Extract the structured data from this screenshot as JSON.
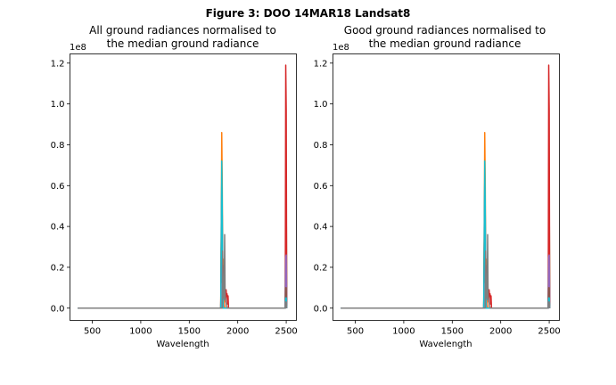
{
  "figure": {
    "suptitle": "Figure 3: DOO 14MAR18  Landsat8"
  },
  "chart_data": [
    {
      "type": "line",
      "title_line1": "All ground radiances normalised to",
      "title_line2": "the median ground radiance",
      "xlabel": "Wavelength",
      "ylabel": "",
      "offset_label": "1e8",
      "xlim": [
        270,
        2605
      ],
      "ylim": [
        -0.06,
        1.245
      ],
      "xticks": [
        500,
        1000,
        1500,
        2000,
        2500
      ],
      "xtick_labels": [
        "500",
        "1000",
        "1500",
        "2000",
        "2500"
      ],
      "yticks": [
        0.0,
        0.2,
        0.4,
        0.6,
        0.8,
        1.0,
        1.2
      ],
      "ytick_labels": [
        "0.0",
        "0.2",
        "0.4",
        "0.6",
        "0.8",
        "1.0",
        "1.2"
      ],
      "grid": false,
      "series": [
        {
          "color": "#1f77b4",
          "x": [
            350,
            1825,
            1830,
            1835,
            1840,
            1845,
            1850,
            1855,
            1870,
            2490,
            2495,
            2500,
            2505
          ],
          "y": [
            0,
            0,
            0.3,
            0.55,
            0.5,
            0.05,
            0,
            0,
            0,
            0,
            0.22,
            0.23,
            0
          ]
        },
        {
          "color": "#ff7f0e",
          "x": [
            350,
            1825,
            1830,
            1835,
            1840,
            1845,
            1850,
            1855,
            1860,
            1870,
            2490,
            2495,
            2500,
            2505
          ],
          "y": [
            0,
            0,
            0.35,
            0.86,
            0.62,
            0.15,
            0.24,
            0.1,
            0.02,
            0,
            0,
            0.03,
            0.02,
            0
          ]
        },
        {
          "color": "#2ca02c",
          "x": [
            350,
            1825,
            1830,
            1835,
            1840,
            1845,
            1850,
            2490,
            2495,
            2500,
            2505
          ],
          "y": [
            0,
            0,
            0.2,
            0.31,
            0.2,
            0.05,
            0,
            0,
            0.6,
            0.6,
            0
          ]
        },
        {
          "color": "#d62728",
          "x": [
            350,
            1830,
            1840,
            1850,
            1860,
            1865,
            1870,
            1875,
            1880,
            1885,
            1890,
            1895,
            1900,
            1905,
            2490,
            2495,
            2500,
            2505
          ],
          "y": [
            0,
            0,
            0.02,
            0.05,
            0.21,
            0.05,
            0.08,
            0.03,
            0.09,
            0.06,
            0.07,
            0.02,
            0.06,
            0,
            0,
            1.19,
            0.97,
            0
          ]
        },
        {
          "color": "#9467bd",
          "x": [
            350,
            1825,
            1830,
            1835,
            1840,
            1845,
            1850,
            2490,
            2495,
            2500,
            2505
          ],
          "y": [
            0,
            0,
            0.15,
            0.5,
            0.37,
            0.1,
            0,
            0,
            0.25,
            0.26,
            0
          ]
        },
        {
          "color": "#8c564b",
          "x": [
            350,
            1825,
            1830,
            1835,
            1840,
            1845,
            1850,
            2490,
            2495,
            2500,
            2505
          ],
          "y": [
            0,
            0,
            0.4,
            0.61,
            0.45,
            0.1,
            0,
            0,
            0.1,
            0.1,
            0
          ]
        },
        {
          "color": "#e377c2",
          "x": [
            350,
            1830,
            1835,
            1840,
            1845,
            1850,
            1855,
            2490,
            2495,
            2500,
            2505
          ],
          "y": [
            0,
            0,
            0.05,
            0.12,
            0.06,
            0.03,
            0,
            0,
            0.02,
            0.02,
            0
          ]
        },
        {
          "color": "#17becf",
          "x": [
            350,
            1825,
            1830,
            1835,
            1840,
            1845,
            1850,
            2490,
            2495,
            2500,
            2505
          ],
          "y": [
            0,
            0,
            0.3,
            0.72,
            0.5,
            0.1,
            0,
            0,
            0.05,
            0.05,
            0
          ]
        },
        {
          "color": "#7f7f7f",
          "x": [
            350,
            1840,
            1845,
            1850,
            1855,
            1860,
            1865,
            1870,
            1875,
            1880,
            1885,
            1890,
            2490,
            2495,
            2500,
            2505
          ],
          "y": [
            0,
            0,
            0.28,
            0.05,
            0.15,
            0.04,
            0.36,
            0.05,
            0.05,
            0.02,
            0.01,
            0,
            0,
            0.03,
            0.03,
            0
          ]
        }
      ]
    },
    {
      "type": "line",
      "title_line1": "Good ground radiances normalised to",
      "title_line2": "the median ground radiance",
      "xlabel": "Wavelength",
      "ylabel": "",
      "offset_label": "1e8",
      "xlim": [
        270,
        2605
      ],
      "ylim": [
        -0.06,
        1.245
      ],
      "xticks": [
        500,
        1000,
        1500,
        2000,
        2500
      ],
      "xtick_labels": [
        "500",
        "1000",
        "1500",
        "2000",
        "2500"
      ],
      "yticks": [
        0.0,
        0.2,
        0.4,
        0.6,
        0.8,
        1.0,
        1.2
      ],
      "ytick_labels": [
        "0.0",
        "0.2",
        "0.4",
        "0.6",
        "0.8",
        "1.0",
        "1.2"
      ],
      "grid": false,
      "series": [
        {
          "color": "#1f77b4",
          "x": [
            350,
            1825,
            1830,
            1835,
            1840,
            1845,
            1850,
            1855,
            1870,
            2490,
            2495,
            2500,
            2505
          ],
          "y": [
            0,
            0,
            0.3,
            0.55,
            0.5,
            0.05,
            0,
            0,
            0,
            0,
            0.22,
            0.23,
            0
          ]
        },
        {
          "color": "#ff7f0e",
          "x": [
            350,
            1825,
            1830,
            1835,
            1840,
            1845,
            1850,
            1855,
            1860,
            1870,
            2490,
            2495,
            2500,
            2505
          ],
          "y": [
            0,
            0,
            0.35,
            0.86,
            0.62,
            0.15,
            0.24,
            0.1,
            0.02,
            0,
            0,
            0.03,
            0.02,
            0
          ]
        },
        {
          "color": "#2ca02c",
          "x": [
            350,
            1825,
            1830,
            1835,
            1840,
            1845,
            1850,
            2490,
            2495,
            2500,
            2505
          ],
          "y": [
            0,
            0,
            0.2,
            0.31,
            0.2,
            0.05,
            0,
            0,
            0.6,
            0.6,
            0
          ]
        },
        {
          "color": "#d62728",
          "x": [
            350,
            1830,
            1840,
            1850,
            1860,
            1865,
            1870,
            1875,
            1880,
            1885,
            1890,
            1895,
            1900,
            1905,
            2490,
            2495,
            2500,
            2505
          ],
          "y": [
            0,
            0,
            0.02,
            0.05,
            0.21,
            0.05,
            0.08,
            0.03,
            0.09,
            0.06,
            0.07,
            0.02,
            0.06,
            0,
            0,
            1.19,
            0.97,
            0
          ]
        },
        {
          "color": "#9467bd",
          "x": [
            350,
            1825,
            1830,
            1835,
            1840,
            1845,
            1850,
            2490,
            2495,
            2500,
            2505
          ],
          "y": [
            0,
            0,
            0.15,
            0.5,
            0.37,
            0.1,
            0,
            0,
            0.25,
            0.26,
            0
          ]
        },
        {
          "color": "#8c564b",
          "x": [
            350,
            1825,
            1830,
            1835,
            1840,
            1845,
            1850,
            2490,
            2495,
            2500,
            2505
          ],
          "y": [
            0,
            0,
            0.4,
            0.61,
            0.45,
            0.1,
            0,
            0,
            0.1,
            0.1,
            0
          ]
        },
        {
          "color": "#e377c2",
          "x": [
            350,
            1830,
            1835,
            1840,
            1845,
            1850,
            1855,
            2490,
            2495,
            2500,
            2505
          ],
          "y": [
            0,
            0,
            0.05,
            0.12,
            0.06,
            0.03,
            0,
            0,
            0.02,
            0.02,
            0
          ]
        },
        {
          "color": "#17becf",
          "x": [
            350,
            1825,
            1830,
            1835,
            1840,
            1845,
            1850,
            2490,
            2495,
            2500,
            2505
          ],
          "y": [
            0,
            0,
            0.3,
            0.72,
            0.5,
            0.1,
            0,
            0,
            0.05,
            0.05,
            0
          ]
        },
        {
          "color": "#7f7f7f",
          "x": [
            350,
            1840,
            1845,
            1850,
            1855,
            1860,
            1865,
            1870,
            1875,
            1880,
            1885,
            1890,
            2490,
            2495,
            2500,
            2505
          ],
          "y": [
            0,
            0,
            0.28,
            0.05,
            0.15,
            0.04,
            0.36,
            0.05,
            0.05,
            0.02,
            0.01,
            0,
            0,
            0.03,
            0.03,
            0
          ]
        }
      ]
    }
  ]
}
